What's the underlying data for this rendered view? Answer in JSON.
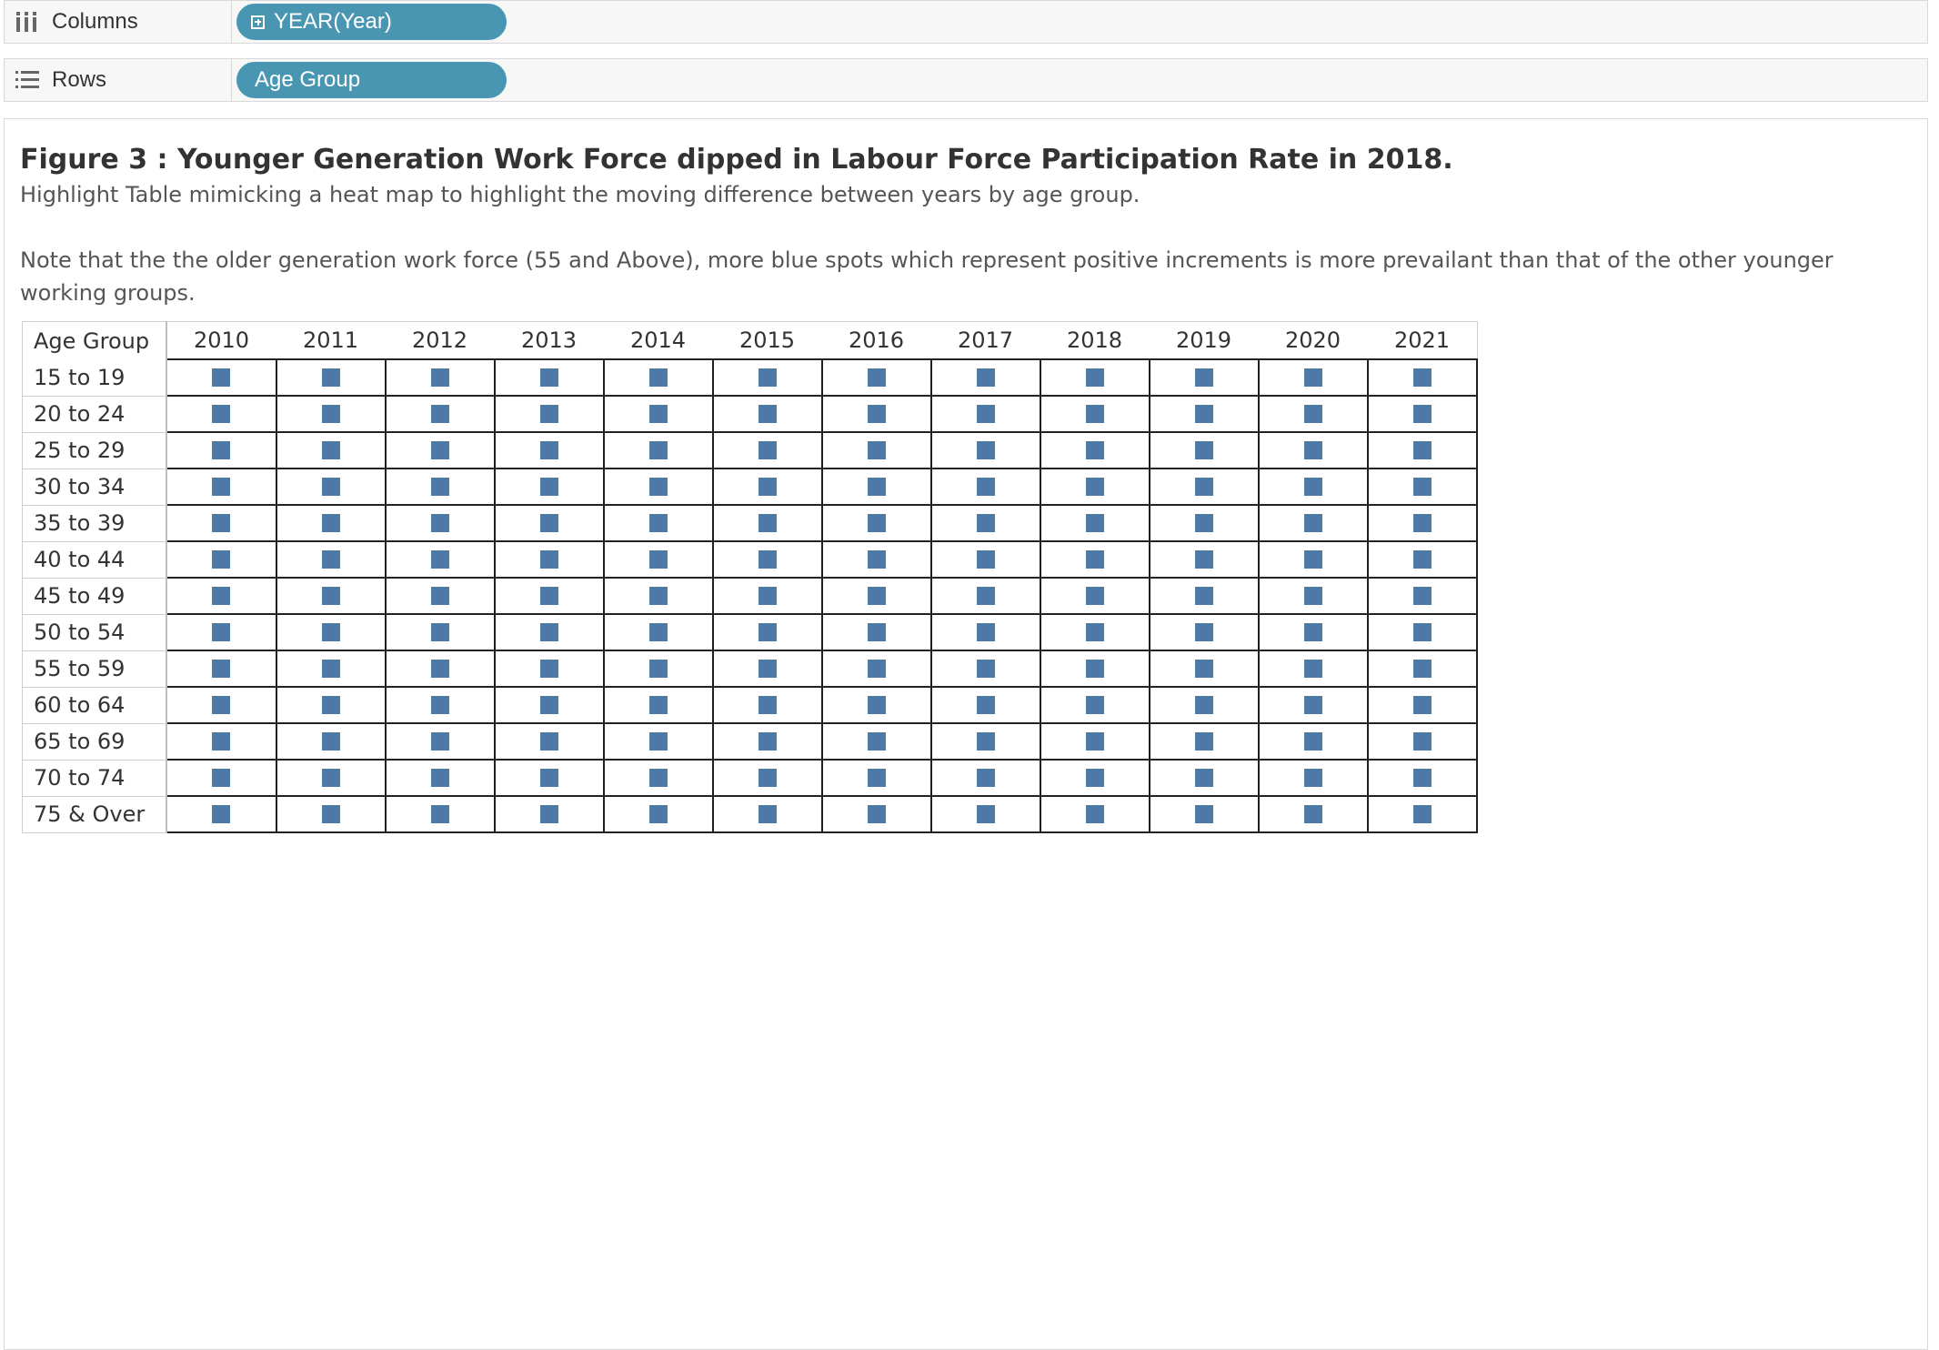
{
  "shelves": {
    "columns": {
      "label": "Columns",
      "pill": "YEAR(Year)",
      "icon": "columns-icon"
    },
    "rows": {
      "label": "Rows",
      "pill": "Age Group",
      "icon": "rows-icon"
    }
  },
  "viz": {
    "title": "Figure 3 : Younger Generation Work Force dipped in Labour Force Participation Rate in 2018.",
    "subtitle": "Highlight Table mimicking a heat map to highlight the moving difference between years by age group.",
    "note": "Note that the the older generation work force (55 and Above), more blue spots which represent positive increments is more  prevailant than that of the other younger working groups."
  },
  "colors": {
    "pill": "#4996b2",
    "mark": "#4e79a7"
  },
  "chart_data": {
    "type": "table",
    "row_header": "Age Group",
    "columns": [
      "2010",
      "2011",
      "2012",
      "2013",
      "2014",
      "2015",
      "2016",
      "2017",
      "2018",
      "2019",
      "2020",
      "2021"
    ],
    "rows": [
      "15 to 19",
      "20 to 24",
      "25 to 29",
      "30 to 34",
      "35 to 39",
      "40 to 44",
      "45 to 49",
      "50 to 54",
      "55 to 59",
      "60 to 64",
      "65 to 69",
      "70 to 74",
      "75 & Over"
    ],
    "mark": "square",
    "mark_color": "#4e79a7"
  }
}
